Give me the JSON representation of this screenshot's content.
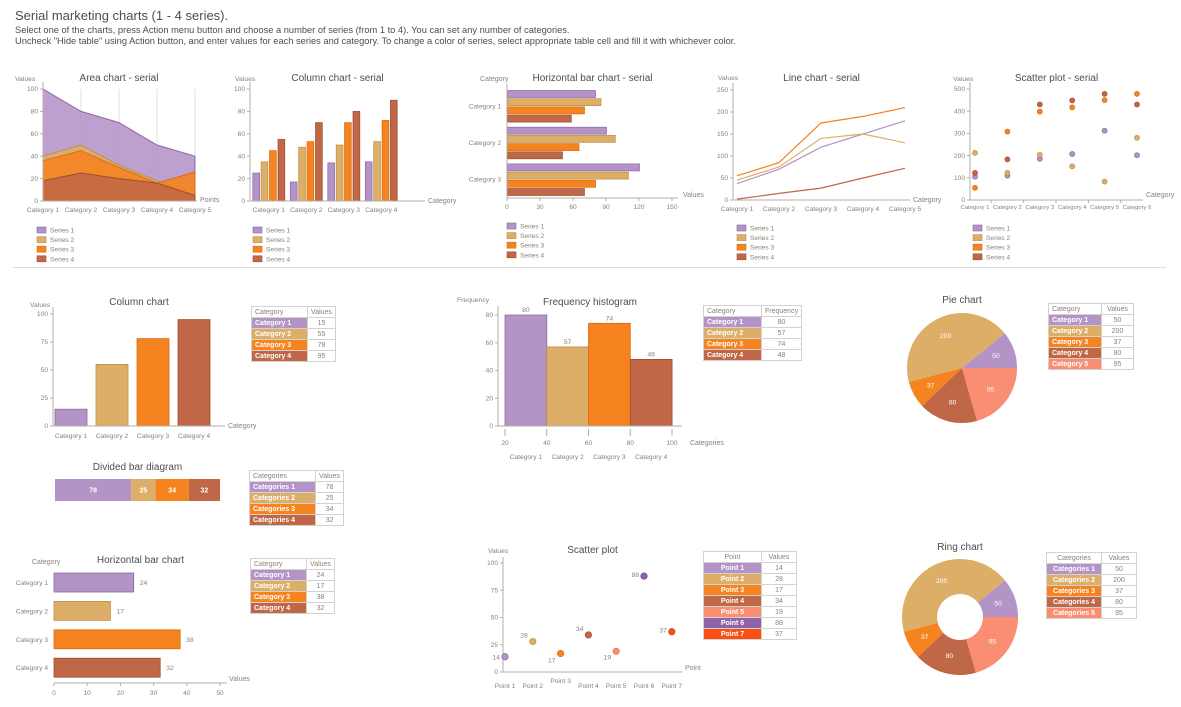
{
  "header": {
    "title": "Serial marketing charts (1 - 4 series).",
    "line1": "Select one of the charts, press Action menu button and choose a number of series (from 1 to 4). You can set any number of categories.",
    "line2": "Uncheck \"Hide table\" using Action button, and enter values for each series and category. To change a color of series, select appropriate table cell and fill it with whichever color."
  },
  "palette": {
    "purple": "#b493c6",
    "tan": "#dcae68",
    "orange": "#f5831f",
    "rust": "#bf6746",
    "salmon": "#f98e72",
    "violet": "#8f63a8",
    "red": "#f94f14"
  },
  "palette_dark": {
    "purple": "#8a68a4",
    "tan": "#bd8f46",
    "orange": "#d96d10",
    "rust": "#9c4f2e",
    "salmon": "#e0714f",
    "violet": "#6f4b87",
    "red": "#d03c08"
  },
  "chart_data": [
    {
      "id": "area_serial",
      "type": "area",
      "title": "Area chart - serial",
      "ylabel": "Values",
      "xlabel": "Points",
      "yticks": [
        0,
        20,
        40,
        60,
        80,
        100
      ],
      "ymax": 100,
      "grid": "vertical",
      "legend_position": "bottom-left",
      "categories": [
        "Category 1",
        "Category 2",
        "Category 3",
        "Category 4",
        "Category 5"
      ],
      "legend": [
        "Series 1",
        "Series 2",
        "Series 3",
        "Series 4"
      ],
      "series": [
        {
          "name": "Series 1",
          "color": "purple",
          "values": [
            100,
            80,
            70,
            50,
            40
          ]
        },
        {
          "name": "Series 2",
          "color": "tan",
          "values": [
            40,
            50,
            32,
            18,
            8
          ]
        },
        {
          "name": "Series 3",
          "color": "orange",
          "values": [
            36,
            45,
            30,
            16,
            26
          ]
        },
        {
          "name": "Series 4",
          "color": "rust",
          "values": [
            18,
            25,
            20,
            16,
            5
          ]
        }
      ]
    },
    {
      "id": "column_serial",
      "type": "grouped_column",
      "title": "Column chart - serial",
      "ylabel": "Values",
      "xlabel": "Category",
      "yticks": [
        0,
        20,
        40,
        60,
        80,
        100
      ],
      "ymax": 100,
      "legend_position": "bottom-left",
      "categories": [
        "Category 1",
        "Category 2",
        "Category 3",
        "Category 4"
      ],
      "legend": [
        "Series 1",
        "Series 2",
        "Series 3",
        "Series 4"
      ],
      "series": [
        {
          "name": "Series 1",
          "color": "purple",
          "values": [
            25,
            17,
            34,
            35
          ]
        },
        {
          "name": "Series 2",
          "color": "tan",
          "values": [
            35,
            48,
            50,
            53
          ]
        },
        {
          "name": "Series 3",
          "color": "orange",
          "values": [
            45,
            53,
            70,
            72
          ]
        },
        {
          "name": "Series 4",
          "color": "rust",
          "values": [
            55,
            70,
            80,
            90
          ]
        }
      ]
    },
    {
      "id": "hbar_serial",
      "type": "grouped_hbar",
      "title": "Horizontal bar chart - serial",
      "corner_label": "Category",
      "xlabel": "Values",
      "xticks": [
        0,
        30,
        60,
        90,
        120,
        150
      ],
      "xmax": 150,
      "legend_position": "bottom-left",
      "categories": [
        "Category 1",
        "Category 2",
        "Category 3"
      ],
      "legend": [
        "Series 1",
        "Series 2",
        "Series 3",
        "Series 4"
      ],
      "series": [
        {
          "name": "Series 1",
          "color": "purple",
          "values": [
            80,
            90,
            120
          ]
        },
        {
          "name": "Series 2",
          "color": "tan",
          "values": [
            85,
            98,
            110
          ]
        },
        {
          "name": "Series 3",
          "color": "orange",
          "values": [
            70,
            65,
            80
          ]
        },
        {
          "name": "Series 4",
          "color": "rust",
          "values": [
            58,
            50,
            70
          ]
        }
      ]
    },
    {
      "id": "line_serial",
      "type": "line",
      "title": "Line chart - serial",
      "ylabel": "Values",
      "xlabel": "Category",
      "yticks": [
        0,
        50,
        100,
        150,
        200,
        250
      ],
      "ymax": 250,
      "legend_position": "bottom-left",
      "categories": [
        "Category 1",
        "Category 2",
        "Category 3",
        "Category 4",
        "Category 5"
      ],
      "legend": [
        "Series 1",
        "Series 2",
        "Series 3",
        "Series 4"
      ],
      "series": [
        {
          "name": "Series 1",
          "color": "purple",
          "values": [
            37,
            70,
            120,
            150,
            180
          ]
        },
        {
          "name": "Series 2",
          "color": "tan",
          "values": [
            45,
            75,
            140,
            150,
            130
          ]
        },
        {
          "name": "Series 3",
          "color": "orange",
          "values": [
            55,
            85,
            175,
            190,
            210
          ]
        },
        {
          "name": "Series 4",
          "color": "rust",
          "values": [
            2,
            15,
            27,
            50,
            72
          ]
        }
      ]
    },
    {
      "id": "scatter_serial",
      "type": "scatter_multi",
      "title": "Scatter plot - serial",
      "ylabel": "Values",
      "xlabel": "Category",
      "yticks": [
        0,
        100,
        200,
        300,
        400,
        500
      ],
      "ymax": 500,
      "legend_position": "bottom-left",
      "categories": [
        "Category 1",
        "Category 2",
        "Category 3",
        "Category 4",
        "Category 5",
        "Category 6"
      ],
      "legend": [
        "Series 1",
        "Series 2",
        "Series 3",
        "Series 4"
      ],
      "series": [
        {
          "name": "Series 1",
          "color": "purple",
          "values": [
            105,
            110,
            185,
            207,
            312,
            202
          ]
        },
        {
          "name": "Series 2",
          "color": "tan",
          "values": [
            212,
            122,
            203,
            152,
            83,
            280
          ]
        },
        {
          "name": "Series 3",
          "color": "orange",
          "values": [
            55,
            308,
            398,
            417,
            450,
            478
          ]
        },
        {
          "name": "Series 4",
          "color": "rust",
          "values": [
            122,
            183,
            430,
            448,
            478,
            430
          ]
        }
      ]
    },
    {
      "id": "column_chart",
      "type": "column",
      "title": "Column chart",
      "ylabel": "Values",
      "xlabel": "Category",
      "yticks": [
        0,
        25,
        50,
        75,
        100
      ],
      "ymax": 100,
      "categories": [
        "Category 1",
        "Category 2",
        "Category 3",
        "Category 4"
      ],
      "values": [
        15,
        55,
        78,
        95
      ],
      "colors": [
        "purple",
        "tan",
        "orange",
        "rust"
      ]
    },
    {
      "id": "histogram",
      "type": "histogram",
      "title": "Frequency histogram",
      "ylabel": "Frequency",
      "xlabel": "Categories",
      "yticks": [
        0,
        20,
        40,
        60,
        80
      ],
      "ymax": 80,
      "xticks": [
        20,
        40,
        60,
        80,
        100
      ],
      "show_labels": true,
      "categories": [
        "Category 1",
        "Category 2",
        "Category 3",
        "Category 4"
      ],
      "values": [
        80,
        57,
        74,
        48
      ],
      "colors": [
        "purple",
        "tan",
        "orange",
        "rust"
      ]
    },
    {
      "id": "pie_chart",
      "type": "pie",
      "title": "Pie chart",
      "start_angle_deg": 0,
      "direction": "ccw",
      "show_labels": true,
      "labels": [
        "Category 1",
        "Category 2",
        "Category 3",
        "Category 4",
        "Category 5"
      ],
      "values": [
        50,
        200,
        37,
        80,
        95
      ],
      "colors": [
        "purple",
        "tan",
        "orange",
        "rust",
        "salmon"
      ]
    },
    {
      "id": "divided_bar",
      "type": "divided_bar",
      "title": "Divided bar diagram",
      "show_labels": true,
      "labels": [
        "Categories 1",
        "Categories 2",
        "Categories 3",
        "Categories 4"
      ],
      "values": [
        78,
        25,
        34,
        32
      ],
      "colors": [
        "purple",
        "tan",
        "orange",
        "rust"
      ]
    },
    {
      "id": "hbar_chart",
      "type": "hbar",
      "title": "Horizontal bar chart",
      "corner_label": "Category",
      "xlabel": "Values",
      "xticks": [
        0,
        10,
        20,
        30,
        40,
        50
      ],
      "xmax": 55,
      "show_labels": true,
      "categories": [
        "Category 1",
        "Category 2",
        "Category 3",
        "Category 4"
      ],
      "values": [
        24,
        17,
        38,
        32
      ],
      "colors": [
        "purple",
        "tan",
        "orange",
        "rust"
      ]
    },
    {
      "id": "scatter_chart",
      "type": "scatter",
      "title": "Scatter plot",
      "ylabel": "Values",
      "xlabel": "Point",
      "yticks": [
        0,
        25,
        50,
        75,
        100
      ],
      "ymax": 100,
      "show_labels": true,
      "categories": [
        "Point 1",
        "Point 2",
        "Point 3",
        "Point 4",
        "Point 5",
        "Point 6",
        "Point 7"
      ],
      "values": [
        14,
        28,
        17,
        34,
        19,
        88,
        37
      ],
      "colors": [
        "purple",
        "tan",
        "orange",
        "rust",
        "salmon",
        "violet",
        "red"
      ]
    },
    {
      "id": "ring_chart",
      "type": "ring",
      "title": "Ring chart",
      "start_angle_deg": 0,
      "direction": "ccw",
      "show_labels": true,
      "labels": [
        "Categories 1",
        "Categories 2",
        "Categories 3",
        "Categories 4",
        "Categories 5"
      ],
      "values": [
        50,
        200,
        37,
        80,
        95
      ],
      "colors": [
        "purple",
        "tan",
        "orange",
        "rust",
        "salmon"
      ]
    }
  ],
  "tables": [
    {
      "id": "column_table",
      "headers": [
        "Category",
        "Values"
      ],
      "align": "left",
      "rows": [
        [
          "Category 1",
          15,
          "purple"
        ],
        [
          "Category 2",
          55,
          "tan"
        ],
        [
          "Category 3",
          78,
          "orange"
        ],
        [
          "Category 4",
          95,
          "rust"
        ]
      ]
    },
    {
      "id": "histogram_table",
      "headers": [
        "Category",
        "Frequency"
      ],
      "align": "left",
      "rows": [
        [
          "Category 1",
          80,
          "purple"
        ],
        [
          "Category 2",
          57,
          "tan"
        ],
        [
          "Category 3",
          74,
          "orange"
        ],
        [
          "Category 4",
          48,
          "rust"
        ]
      ]
    },
    {
      "id": "pie_table",
      "headers": [
        "Category",
        "Values"
      ],
      "align": "left",
      "rows": [
        [
          "Category 1",
          50,
          "purple"
        ],
        [
          "Category 2",
          200,
          "tan"
        ],
        [
          "Category 3",
          37,
          "orange"
        ],
        [
          "Category 4",
          80,
          "rust"
        ],
        [
          "Category 5",
          95,
          "salmon"
        ]
      ]
    },
    {
      "id": "divided_table",
      "headers": [
        "Categories",
        "Values"
      ],
      "align": "left",
      "rows": [
        [
          "Categories 1",
          78,
          "purple"
        ],
        [
          "Categories 2",
          25,
          "tan"
        ],
        [
          "Categories 3",
          34,
          "orange"
        ],
        [
          "Categories 4",
          32,
          "rust"
        ]
      ]
    },
    {
      "id": "hbar_table",
      "headers": [
        "Category",
        "Values"
      ],
      "align": "left",
      "rows": [
        [
          "Category 1",
          24,
          "purple"
        ],
        [
          "Category 2",
          17,
          "tan"
        ],
        [
          "Category 3",
          38,
          "orange"
        ],
        [
          "Category 4",
          32,
          "rust"
        ]
      ]
    },
    {
      "id": "scatter_table",
      "headers": [
        "Point",
        "Values"
      ],
      "align": "center",
      "rows": [
        [
          "Point 1",
          14,
          "purple"
        ],
        [
          "Point 2",
          28,
          "tan"
        ],
        [
          "Point 3",
          17,
          "orange"
        ],
        [
          "Point 4",
          34,
          "rust"
        ],
        [
          "Point 5",
          19,
          "salmon"
        ],
        [
          "Point 6",
          88,
          "violet"
        ],
        [
          "Point 7",
          37,
          "red"
        ]
      ]
    },
    {
      "id": "ring_table",
      "headers": [
        "Categories",
        "Values"
      ],
      "align": "center",
      "rows": [
        [
          "Categories 1",
          50,
          "purple"
        ],
        [
          "Categories 2",
          200,
          "tan"
        ],
        [
          "Categories 3",
          37,
          "orange"
        ],
        [
          "Categories 4",
          80,
          "rust"
        ],
        [
          "Categories 5",
          95,
          "salmon"
        ]
      ]
    }
  ]
}
